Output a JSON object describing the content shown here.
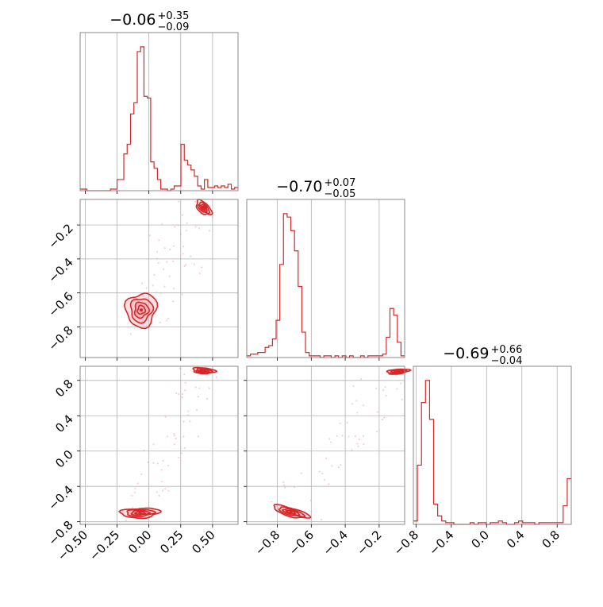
{
  "chart_data": {
    "type": "corner",
    "style": {
      "line_color": "#d62728",
      "fill_color": "#f4a6b0",
      "grid": true,
      "frame_color": "#888888"
    },
    "titles": [
      {
        "value": "−0.06",
        "plus": "+0.35",
        "minus": "−0.09"
      },
      {
        "value": "−0.70",
        "plus": "+0.07",
        "minus": "−0.05"
      },
      {
        "value": "−0.69",
        "plus": "+0.66",
        "minus": "−0.04"
      }
    ],
    "params": [
      {
        "range": [
          -0.54,
          0.7
        ],
        "ticks": [
          -0.5,
          -0.25,
          0.0,
          0.25,
          0.5
        ],
        "tick_labels": [
          "−0.50",
          "−0.25",
          "0.00",
          "0.25",
          "0.50"
        ]
      },
      {
        "range": [
          -0.98,
          -0.05
        ],
        "ticks": [
          -0.8,
          -0.6,
          -0.4,
          -0.2
        ],
        "tick_labels": [
          "−0.8",
          "−0.6",
          "−0.4",
          "−0.2"
        ]
      },
      {
        "range": [
          -0.83,
          0.96
        ],
        "ticks": [
          -0.8,
          -0.4,
          0.0,
          0.4,
          0.8
        ],
        "tick_labels": [
          "−0.8",
          "−0.4",
          "0.0",
          "0.4",
          "0.8"
        ]
      }
    ],
    "histograms": [
      {
        "param": 0,
        "bin_start": -0.54,
        "bin_end": 0.7,
        "counts": [
          0.01,
          0.01,
          0,
          0,
          0,
          0,
          0,
          0,
          0,
          0.01,
          0.01,
          0.07,
          0.07,
          0.23,
          0.29,
          0.48,
          0.55,
          0.87,
          0.9,
          0.59,
          0.58,
          0.18,
          0.14,
          0.07,
          0.01,
          0.01,
          0,
          0.01,
          0.03,
          0.03,
          0.29,
          0.19,
          0.16,
          0.13,
          0.09,
          0.03,
          0.01,
          0.07,
          0.02,
          0.02,
          0.03,
          0.02,
          0.03,
          0.02,
          0.04,
          0.01,
          0.02
        ]
      },
      {
        "param": 1,
        "bin_start": -0.98,
        "bin_end": -0.05,
        "counts": [
          0.01,
          0.02,
          0.02,
          0.03,
          0.03,
          0.06,
          0.07,
          0.11,
          0.22,
          0.55,
          0.85,
          0.83,
          0.75,
          0.63,
          0.42,
          0.15,
          0.03,
          0.01,
          0.01,
          0.01,
          0,
          0.01,
          0.01,
          0,
          0.01,
          0,
          0.01,
          0,
          0.01,
          0,
          0,
          0.01,
          0,
          0.01,
          0.01,
          0.01,
          0.01,
          0.02,
          0.12,
          0.29,
          0.25,
          0.09,
          0.01
        ]
      },
      {
        "param": 2,
        "bin_start": -0.83,
        "bin_end": 0.96,
        "counts": [
          0.02,
          0.35,
          0.72,
          0.85,
          0.62,
          0.12,
          0.05,
          0.02,
          0.01,
          0.01,
          0,
          0,
          0,
          0,
          0.01,
          0,
          0.01,
          0.01,
          0,
          0.01,
          0.01,
          0.02,
          0.01,
          0,
          0,
          0.01,
          0.02,
          0.01,
          0.01,
          0.01,
          0,
          0.01,
          0.01,
          0.01,
          0.01,
          0.01,
          0.01,
          0.11,
          0.27
        ]
      }
    ],
    "joint": [
      {
        "x": 0,
        "y": 1,
        "modes": [
          {
            "cx": -0.06,
            "cy": -0.7,
            "sx": 0.055,
            "sy": 0.045,
            "rot": 0.15,
            "weight": 1.0
          },
          {
            "cx": 0.43,
            "cy": -0.1,
            "sx": 0.03,
            "sy": 0.015,
            "rot": -0.5,
            "weight": 0.35
          }
        ]
      },
      {
        "x": 0,
        "y": 2,
        "modes": [
          {
            "cx": -0.07,
            "cy": -0.7,
            "sx": 0.07,
            "sy": 0.025,
            "rot": 0.05,
            "weight": 1.0
          },
          {
            "cx": 0.43,
            "cy": 0.91,
            "sx": 0.04,
            "sy": 0.015,
            "rot": -0.1,
            "weight": 0.35
          }
        ]
      },
      {
        "x": 1,
        "y": 2,
        "modes": [
          {
            "cx": -0.72,
            "cy": -0.69,
            "sx": 0.055,
            "sy": 0.02,
            "rot": -0.55,
            "weight": 1.0
          },
          {
            "cx": -0.09,
            "cy": 0.9,
            "sx": 0.03,
            "sy": 0.012,
            "rot": 0.2,
            "weight": 0.3
          }
        ]
      }
    ]
  }
}
